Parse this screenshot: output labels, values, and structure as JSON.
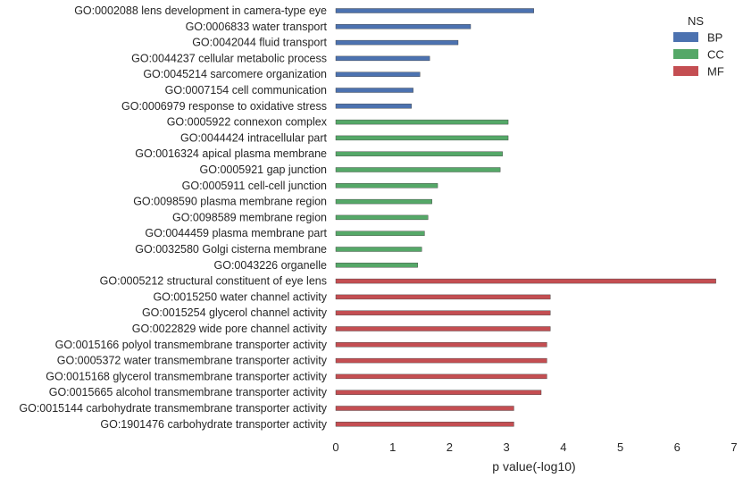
{
  "chart_data": {
    "type": "bar",
    "orientation": "horizontal",
    "xlabel": "p value(-log10)",
    "xlim": [
      0,
      7
    ],
    "xticks": [
      "0",
      "1",
      "2",
      "3",
      "4",
      "5",
      "6",
      "7"
    ],
    "grid": false,
    "legend": {
      "title": "NS",
      "placement": "top-right",
      "entries": [
        {
          "name": "BP",
          "color": "#4c72b0"
        },
        {
          "name": "CC",
          "color": "#55a868"
        },
        {
          "name": "MF",
          "color": "#c44e52"
        }
      ]
    },
    "bars": [
      {
        "label": "GO:0002088 lens development in camera-type eye",
        "value": 3.48,
        "ns": "BP"
      },
      {
        "label": "GO:0006833 water transport",
        "value": 2.37,
        "ns": "BP"
      },
      {
        "label": "GO:0042044 fluid transport",
        "value": 2.15,
        "ns": "BP"
      },
      {
        "label": "GO:0044237 cellular metabolic process",
        "value": 1.65,
        "ns": "BP"
      },
      {
        "label": "GO:0045214 sarcomere organization",
        "value": 1.48,
        "ns": "BP"
      },
      {
        "label": "GO:0007154 cell communication",
        "value": 1.36,
        "ns": "BP"
      },
      {
        "label": "GO:0006979 response to oxidative stress",
        "value": 1.33,
        "ns": "BP"
      },
      {
        "label": "GO:0005922 connexon complex",
        "value": 3.03,
        "ns": "CC"
      },
      {
        "label": "GO:0044424 intracellular part",
        "value": 3.03,
        "ns": "CC"
      },
      {
        "label": "GO:0016324 apical plasma membrane",
        "value": 2.93,
        "ns": "CC"
      },
      {
        "label": "GO:0005921 gap junction",
        "value": 2.89,
        "ns": "CC"
      },
      {
        "label": "GO:0005911 cell-cell junction",
        "value": 1.79,
        "ns": "CC"
      },
      {
        "label": "GO:0098590 plasma membrane region",
        "value": 1.69,
        "ns": "CC"
      },
      {
        "label": "GO:0098589 membrane region",
        "value": 1.62,
        "ns": "CC"
      },
      {
        "label": "GO:0044459 plasma membrane part",
        "value": 1.56,
        "ns": "CC"
      },
      {
        "label": "GO:0032580 Golgi cisterna membrane",
        "value": 1.51,
        "ns": "CC"
      },
      {
        "label": "GO:0043226 organelle",
        "value": 1.44,
        "ns": "CC"
      },
      {
        "label": "GO:0005212 structural constituent of eye lens",
        "value": 6.68,
        "ns": "MF"
      },
      {
        "label": "GO:0015250 water channel activity",
        "value": 3.77,
        "ns": "MF"
      },
      {
        "label": "GO:0015254 glycerol channel activity",
        "value": 3.77,
        "ns": "MF"
      },
      {
        "label": "GO:0022829 wide pore channel activity",
        "value": 3.77,
        "ns": "MF"
      },
      {
        "label": "GO:0015166 polyol transmembrane transporter activity",
        "value": 3.71,
        "ns": "MF"
      },
      {
        "label": "GO:0005372 water transmembrane transporter activity",
        "value": 3.71,
        "ns": "MF"
      },
      {
        "label": "GO:0015168 glycerol transmembrane transporter activity",
        "value": 3.71,
        "ns": "MF"
      },
      {
        "label": "GO:0015665 alcohol transmembrane transporter activity",
        "value": 3.61,
        "ns": "MF"
      },
      {
        "label": "GO:0015144 carbohydrate transmembrane transporter activity",
        "value": 3.13,
        "ns": "MF"
      },
      {
        "label": "GO:1901476 carbohydrate transporter activity",
        "value": 3.13,
        "ns": "MF"
      }
    ]
  }
}
